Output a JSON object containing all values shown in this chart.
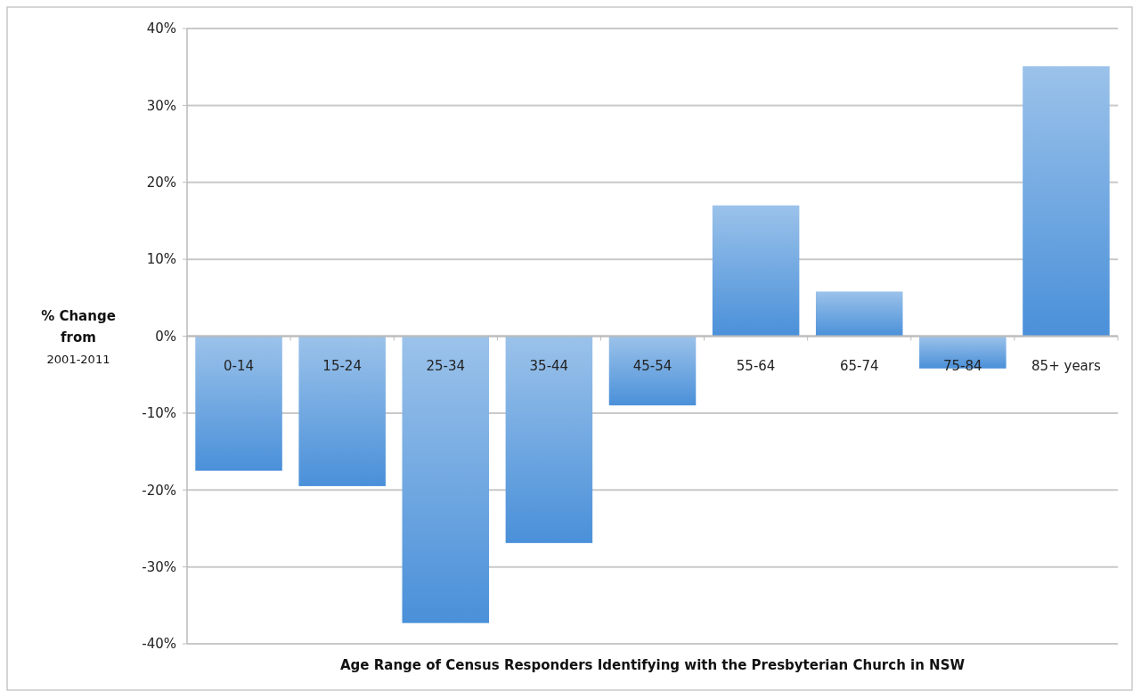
{
  "chart_data": {
    "type": "bar",
    "categories": [
      "0-14",
      "15-24",
      "25-34",
      "35-44",
      "45-54",
      "55-64",
      "65-74",
      "75-84",
      "85+ years"
    ],
    "values": [
      -17.5,
      -19.5,
      -37.3,
      -26.9,
      -9.0,
      17.0,
      5.8,
      -4.2,
      35.1
    ],
    "color": "#4a90d9",
    "xlabel": "Age Range of Census Responders Identifying with the Presbyterian Church in NSW",
    "ylabel": "% Change from 2001-2011",
    "ylim": [
      -40,
      40
    ],
    "yticks": [
      {
        "value": -40,
        "label": "-40%"
      },
      {
        "value": -30,
        "label": "-30%"
      },
      {
        "value": -20,
        "label": "-20%"
      },
      {
        "value": -10,
        "label": "-10%"
      },
      {
        "value": 0,
        "label": "0%"
      },
      {
        "value": 10,
        "label": "10%"
      },
      {
        "value": 20,
        "label": "20%"
      },
      {
        "value": 30,
        "label": "30%"
      },
      {
        "value": 40,
        "label": "40%"
      }
    ],
    "grid": "y"
  }
}
